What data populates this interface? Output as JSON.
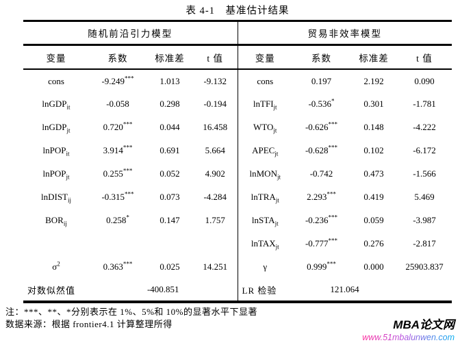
{
  "title": "表 4-1　基准估计结果",
  "table": {
    "left_panel": {
      "title": "随机前沿引力模型",
      "columns": [
        "变量",
        "系数",
        "标准差",
        "t 值"
      ],
      "rows": [
        {
          "var": {
            "base": "cons"
          },
          "coef": "-9.249",
          "stars": "***",
          "se": "1.013",
          "t": "-9.132"
        },
        {
          "var": {
            "base": "lnGDP",
            "sub": "it"
          },
          "coef": "-0.058",
          "stars": "",
          "se": "0.298",
          "t": "-0.194"
        },
        {
          "var": {
            "base": "lnGDP",
            "sub": "jt"
          },
          "coef": "0.720",
          "stars": "***",
          "se": "0.044",
          "t": "16.458"
        },
        {
          "var": {
            "base": "lnPOP",
            "sub": "it"
          },
          "coef": "3.914",
          "stars": "***",
          "se": "0.691",
          "t": "5.664"
        },
        {
          "var": {
            "base": "lnPOP",
            "sub": "jt"
          },
          "coef": "0.255",
          "stars": "***",
          "se": "0.052",
          "t": "4.902"
        },
        {
          "var": {
            "base": "lnDIST",
            "sub": "ij"
          },
          "coef": "-0.315",
          "stars": "***",
          "se": "0.073",
          "t": "-4.284"
        },
        {
          "var": {
            "base": "BOR",
            "sub": "ij"
          },
          "coef": "0.258",
          "stars": "*",
          "se": "0.147",
          "t": "1.757"
        },
        null,
        {
          "var": {
            "base": "σ",
            "sup": "2"
          },
          "coef": "0.363",
          "stars": "***",
          "se": "0.025",
          "t": "14.251"
        }
      ],
      "summary": {
        "label": "对数似然值",
        "value": "-400.851"
      }
    },
    "right_panel": {
      "title": "贸易非效率模型",
      "columns": [
        "变量",
        "系数",
        "标准差",
        "t 值"
      ],
      "rows": [
        {
          "var": {
            "base": "cons"
          },
          "coef": "0.197",
          "stars": "",
          "se": "2.192",
          "t": "0.090"
        },
        {
          "var": {
            "base": "lnTFI",
            "sub": "jt"
          },
          "coef": "-0.536",
          "stars": "*",
          "se": "0.301",
          "t": "-1.781"
        },
        {
          "var": {
            "base": "WTO",
            "sub": "jt"
          },
          "coef": "-0.626",
          "stars": "***",
          "se": "0.148",
          "t": "-4.222"
        },
        {
          "var": {
            "base": "APEC",
            "sub": "jt"
          },
          "coef": "-0.628",
          "stars": "***",
          "se": "0.102",
          "t": "-6.172"
        },
        {
          "var": {
            "base": "lnMON",
            "sub": "jt"
          },
          "coef": "-0.742",
          "stars": "",
          "se": "0.473",
          "t": "-1.566"
        },
        {
          "var": {
            "base": "lnTRA",
            "sub": "jt"
          },
          "coef": "2.293",
          "stars": "***",
          "se": "0.419",
          "t": "5.469"
        },
        {
          "var": {
            "base": "lnSTA",
            "sub": "jt"
          },
          "coef": "-0.236",
          "stars": "***",
          "se": "0.059",
          "t": "-3.987"
        },
        {
          "var": {
            "base": "lnTAX",
            "sub": "jt"
          },
          "coef": "-0.777",
          "stars": "***",
          "se": "0.276",
          "t": "-2.817"
        },
        {
          "var": {
            "base": "γ"
          },
          "coef": "0.999",
          "stars": "***",
          "se": "0.000",
          "t": "25903.837"
        }
      ],
      "summary": {
        "label": "LR 检验",
        "value": "121.064"
      }
    }
  },
  "notes": {
    "significance": "注：***、**、*分别表示在 1%、5%和 10%的显著水平下显著",
    "source": "数据来源：根据 frontier4.1 计算整理所得"
  },
  "watermark": {
    "name": "MBA论文网",
    "url": "www.51mbalunwen.com",
    "url_gradient": [
      "#ff2d9c",
      "#b44fe0",
      "#00aef0"
    ],
    "name_color": "#000000"
  }
}
